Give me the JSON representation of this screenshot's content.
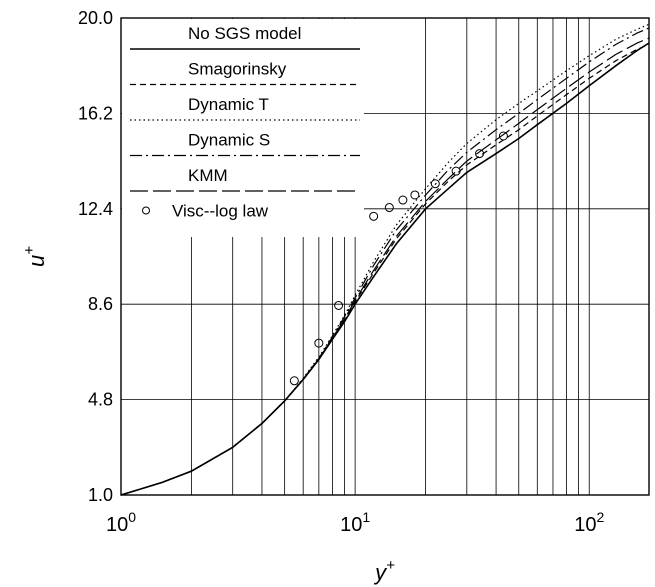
{
  "chart_data": {
    "type": "line",
    "xscale": "log",
    "xlim": [
      1,
      180
    ],
    "ylim": [
      1.0,
      20.0
    ],
    "xlabel": "y+",
    "ylabel": "u+",
    "grid": true,
    "legend_position": "top-left",
    "x_ticks": [
      {
        "base": "10",
        "exp": "0",
        "value": 1
      },
      {
        "base": "10",
        "exp": "1",
        "value": 10
      },
      {
        "base": "10",
        "exp": "2",
        "value": 100
      }
    ],
    "y_ticks": [
      "1.0",
      "4.8",
      "8.6",
      "12.4",
      "16.2",
      "20.0"
    ],
    "series": [
      {
        "name": "No SGS model",
        "style": "solid",
        "width": 1.6,
        "color": "#000000",
        "x": [
          1,
          1.5,
          2,
          3,
          4,
          5,
          6,
          7,
          8,
          9,
          10,
          12,
          15,
          20,
          25,
          30,
          40,
          50,
          60,
          80,
          100,
          130,
          160,
          180
        ],
        "y": [
          1.0,
          1.5,
          1.95,
          2.9,
          3.85,
          4.75,
          5.6,
          6.4,
          7.2,
          7.9,
          8.6,
          9.7,
          11.0,
          12.4,
          13.2,
          13.85,
          14.6,
          15.2,
          15.75,
          16.6,
          17.3,
          18.1,
          18.7,
          19.0
        ]
      },
      {
        "name": "Smagorinsky",
        "style": "dashed",
        "width": 1.2,
        "color": "#000000",
        "x": [
          1,
          1.5,
          2,
          3,
          4,
          5,
          6,
          7,
          8,
          9,
          10,
          12,
          15,
          20,
          25,
          30,
          40,
          50,
          60,
          80,
          100,
          130,
          160,
          180
        ],
        "y": [
          1.0,
          1.5,
          1.95,
          2.9,
          3.85,
          4.75,
          5.6,
          6.4,
          7.2,
          7.95,
          8.7,
          9.85,
          11.2,
          12.6,
          13.5,
          14.15,
          14.95,
          15.55,
          16.1,
          16.95,
          17.6,
          18.3,
          18.75,
          18.95
        ]
      },
      {
        "name": "Dynamic T",
        "style": "dotted",
        "width": 1.2,
        "color": "#000000",
        "x": [
          1,
          1.5,
          2,
          3,
          4,
          5,
          6,
          7,
          8,
          9,
          10,
          12,
          15,
          20,
          25,
          30,
          40,
          50,
          60,
          80,
          100,
          130,
          160,
          180
        ],
        "y": [
          1.0,
          1.5,
          1.95,
          2.9,
          3.85,
          4.75,
          5.65,
          6.5,
          7.35,
          8.15,
          8.95,
          10.3,
          11.75,
          13.2,
          14.25,
          15.0,
          15.95,
          16.6,
          17.1,
          17.9,
          18.5,
          19.15,
          19.55,
          19.75
        ]
      },
      {
        "name": "Dynamic S",
        "style": "dashdot",
        "width": 1.2,
        "color": "#000000",
        "x": [
          1,
          1.5,
          2,
          3,
          4,
          5,
          6,
          7,
          8,
          9,
          10,
          12,
          15,
          20,
          25,
          30,
          40,
          50,
          60,
          80,
          100,
          130,
          160,
          180
        ],
        "y": [
          1.0,
          1.5,
          1.95,
          2.9,
          3.85,
          4.75,
          5.62,
          6.45,
          7.3,
          8.1,
          8.85,
          10.15,
          11.55,
          12.95,
          13.95,
          14.65,
          15.55,
          16.2,
          16.75,
          17.6,
          18.25,
          18.95,
          19.4,
          19.6
        ]
      },
      {
        "name": "KMM",
        "style": "longdash",
        "width": 1.2,
        "color": "#000000",
        "x": [
          1,
          1.5,
          2,
          3,
          4,
          5,
          6,
          7,
          8,
          9,
          10,
          12,
          15,
          20,
          25,
          30,
          40,
          50,
          60,
          80,
          100,
          130,
          160,
          180
        ],
        "y": [
          1.0,
          1.5,
          1.95,
          2.9,
          3.85,
          4.75,
          5.6,
          6.42,
          7.25,
          8.0,
          8.75,
          9.95,
          11.3,
          12.7,
          13.6,
          14.3,
          15.15,
          15.8,
          16.35,
          17.2,
          17.85,
          18.55,
          19.0,
          19.2
        ]
      },
      {
        "name": "Visc--log law",
        "style": "markers",
        "marker": "circle",
        "color": "#000000",
        "x": [
          5.5,
          7,
          8.5,
          10,
          12,
          14,
          16,
          18,
          22,
          27,
          34,
          43
        ],
        "y": [
          5.55,
          7.05,
          8.55,
          11.7,
          12.1,
          12.45,
          12.75,
          12.95,
          13.4,
          13.9,
          14.6,
          15.3
        ]
      }
    ]
  }
}
